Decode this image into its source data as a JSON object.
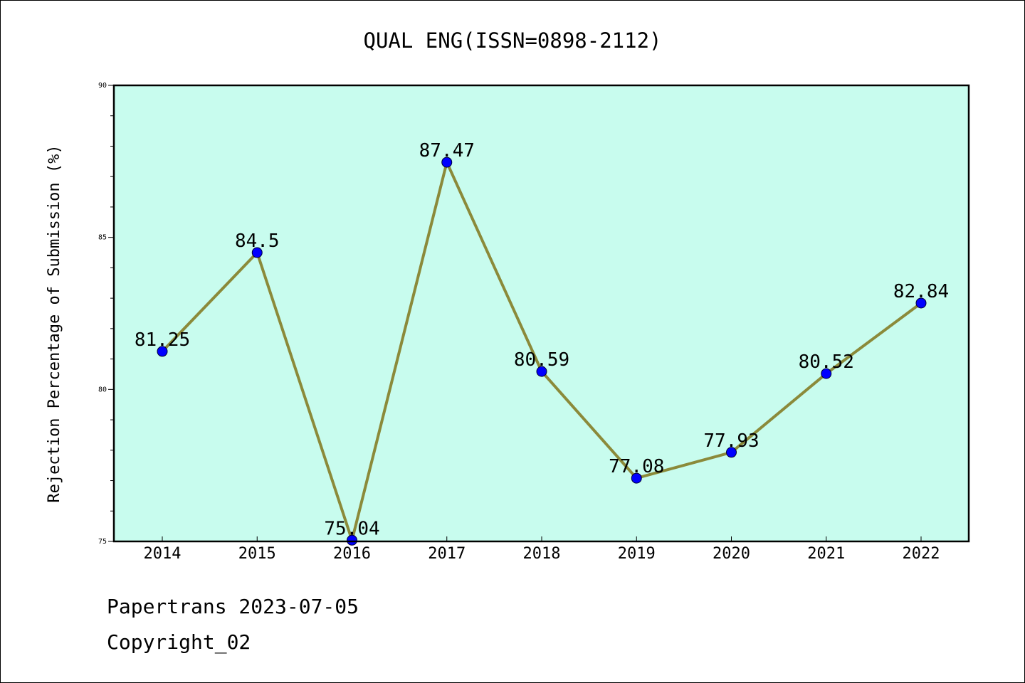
{
  "chart_data": {
    "type": "line",
    "title": "QUAL ENG(ISSN=0898-2112)",
    "xlabel": "",
    "ylabel": "Rejection Percentage of Submission (%)",
    "categories": [
      "2014",
      "2015",
      "2016",
      "2017",
      "2018",
      "2019",
      "2020",
      "2021",
      "2022"
    ],
    "series": [
      {
        "values": [
          81.25,
          84.5,
          75.04,
          87.47,
          80.59,
          77.08,
          77.93,
          80.52,
          82.84
        ],
        "labels": [
          "81.25",
          "84.5",
          "75.04",
          "87.47",
          "80.59",
          "77.08",
          "77.93",
          "80.52",
          "82.84"
        ]
      }
    ],
    "ylim": [
      75,
      90
    ],
    "yticks": [
      75,
      80,
      85,
      90
    ],
    "ytick_labels": [
      "75",
      "80",
      "85",
      "90"
    ],
    "grid": false,
    "colors": {
      "plot_background": "#c8fcee",
      "line": "#8b8a3a",
      "marker": "#0000ff"
    }
  },
  "footer": {
    "line1": "Papertrans 2023-07-05",
    "line2": "Copyright_02"
  }
}
